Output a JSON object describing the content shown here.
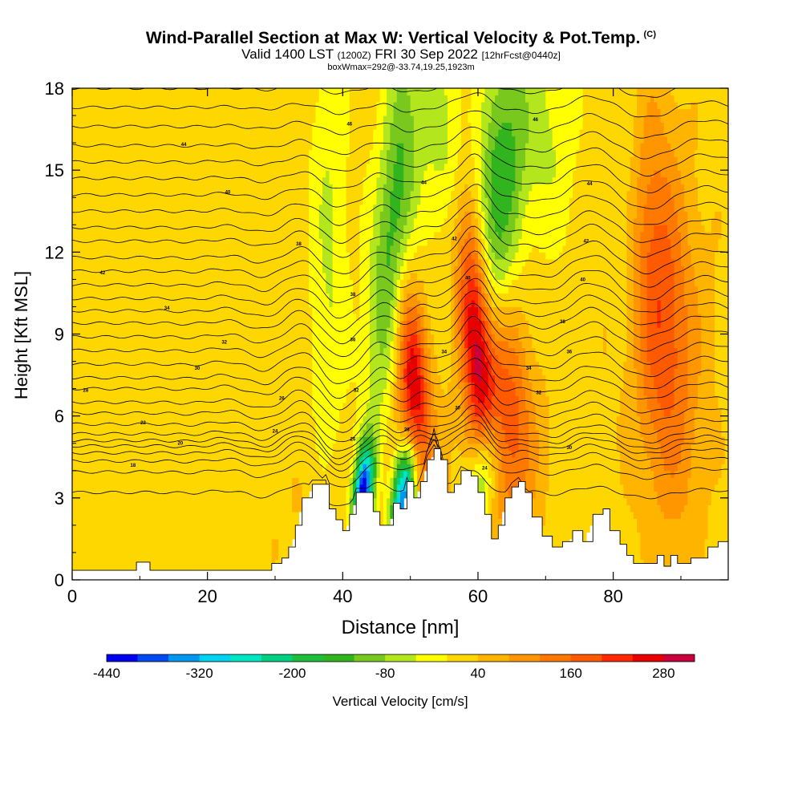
{
  "title": {
    "main": "Wind-Parallel Section at Max W: Vertical Velocity & Pot.Temp.",
    "copyright": "(C)",
    "valid_prefix": "Valid 1400 LST",
    "valid_utc": "(1200Z)",
    "valid_date": "FRI 30 Sep 2022",
    "forecast": "[12hrFcst@0440z]",
    "box_info": "boxWmax=292@-33.74,19.25,1923m"
  },
  "chart_data": {
    "type": "heatmap",
    "xlabel": "Distance [nm]",
    "ylabel": "Height [Kft MSL]",
    "xlim": [
      0,
      97
    ],
    "ylim": [
      0,
      18
    ],
    "x_ticks": [
      0,
      20,
      40,
      60,
      80
    ],
    "x_tick_labels": [
      "0",
      "20",
      "40",
      "60",
      "80"
    ],
    "y_ticks": [
      0,
      3,
      6,
      9,
      12,
      15,
      18
    ],
    "y_tick_labels": [
      "0",
      "3",
      "6",
      "9",
      "12",
      "15",
      "18"
    ],
    "colorbar": {
      "label": "Vertical Velocity [cm/s]",
      "levels": [
        -440,
        -400,
        -360,
        -320,
        -280,
        -240,
        -200,
        -160,
        -120,
        -80,
        -40,
        0,
        40,
        80,
        120,
        160,
        200,
        240,
        280,
        320
      ],
      "colors": [
        "#0000f0",
        "#0048f0",
        "#0096f0",
        "#00d2f0",
        "#00e6c3",
        "#00d080",
        "#1ebe3c",
        "#32b41e",
        "#78c81e",
        "#b4e61e",
        "#ffff00",
        "#ffd700",
        "#ffb400",
        "#ff9600",
        "#ff7800",
        "#ff5a00",
        "#ff2800",
        "#e60000",
        "#c8003c"
      ],
      "tick_values": [
        -440,
        -320,
        -200,
        -80,
        40,
        160,
        280
      ],
      "tick_labels": [
        "-440",
        "-320",
        "-200",
        "-80",
        "40",
        "160",
        "280"
      ]
    },
    "terrain_kft": [
      [
        0,
        0.35
      ],
      [
        9.5,
        0.35
      ],
      [
        9.5,
        0.65
      ],
      [
        11.5,
        0.65
      ],
      [
        11.5,
        0.35
      ],
      [
        29.5,
        0.35
      ],
      [
        29.5,
        0.6
      ],
      [
        31,
        0.8
      ],
      [
        32,
        1.2
      ],
      [
        33,
        2.0
      ],
      [
        34,
        3.0
      ],
      [
        35.5,
        3.5
      ],
      [
        37.5,
        3.5
      ],
      [
        38,
        2.6
      ],
      [
        39,
        2.2
      ],
      [
        40,
        1.8
      ],
      [
        41,
        2.4
      ],
      [
        42,
        3.2
      ],
      [
        43.5,
        3.2
      ],
      [
        44.5,
        2.5
      ],
      [
        45.5,
        2.0
      ],
      [
        46.5,
        2.0
      ],
      [
        47.5,
        2.8
      ],
      [
        48.5,
        2.6
      ],
      [
        49.5,
        3.6
      ],
      [
        50.5,
        3.0
      ],
      [
        51.5,
        3.6
      ],
      [
        52.5,
        4.4
      ],
      [
        53.5,
        4.8
      ],
      [
        54.5,
        4.4
      ],
      [
        55.5,
        3.2
      ],
      [
        56.5,
        3.5
      ],
      [
        57.5,
        4.0
      ],
      [
        59,
        3.8
      ],
      [
        60,
        3.2
      ],
      [
        61,
        2.4
      ],
      [
        62,
        1.5
      ],
      [
        63,
        2.0
      ],
      [
        64,
        3.0
      ],
      [
        65,
        3.4
      ],
      [
        66,
        3.6
      ],
      [
        67,
        3.2
      ],
      [
        68,
        2.3
      ],
      [
        69.5,
        1.6
      ],
      [
        71,
        1.2
      ],
      [
        72.5,
        1.4
      ],
      [
        74,
        1.8
      ],
      [
        75.5,
        1.4
      ],
      [
        77,
        2.4
      ],
      [
        78.5,
        2.6
      ],
      [
        79.5,
        1.8
      ],
      [
        81,
        1.3
      ],
      [
        82,
        0.9
      ],
      [
        83,
        0.6
      ],
      [
        85,
        0.6
      ],
      [
        86.5,
        0.9
      ],
      [
        87.5,
        0.5
      ],
      [
        88.5,
        0.9
      ],
      [
        89.5,
        0.6
      ],
      [
        91.5,
        0.8
      ],
      [
        93,
        0.8
      ],
      [
        94,
        1.2
      ],
      [
        95.5,
        1.4
      ],
      [
        97,
        1.4
      ]
    ],
    "updraft_cores": [
      {
        "x": 50.5,
        "y": 7.0,
        "w_max": 250,
        "half_width_nm": 1.6,
        "half_height_kft": 2.6
      },
      {
        "x": 59.7,
        "y": 9.0,
        "w_max": 292,
        "half_width_nm": 1.7,
        "half_height_kft": 3.4
      },
      {
        "x": 64.5,
        "y": 6.2,
        "w_max": 150,
        "half_width_nm": 2.5,
        "half_height_kft": 3.0
      },
      {
        "x": 87.0,
        "y": 10.0,
        "w_max": 140,
        "half_width_nm": 3.0,
        "half_height_kft": 5.0
      }
    ],
    "downdraft_cores": [
      {
        "x": 43.0,
        "y": 3.2,
        "w_min": -440,
        "half_width_nm": 1.0,
        "half_height_kft": 1.2
      },
      {
        "x": 49.0,
        "y": 3.0,
        "w_min": -400,
        "half_width_nm": 1.2,
        "half_height_kft": 1.4
      },
      {
        "x": 61.0,
        "y": 4.0,
        "w_min": -200,
        "half_width_nm": 1.5,
        "half_height_kft": 1.5
      },
      {
        "x": 47.5,
        "y": 13.0,
        "w_min": -160,
        "half_width_nm": 2.0,
        "half_height_kft": 5.0
      },
      {
        "x": 63.0,
        "y": 14.0,
        "w_min": -170,
        "half_width_nm": 2.5,
        "half_height_kft": 4.0
      }
    ],
    "theta_contour_kft": [
      3.2,
      3.95,
      4.35,
      4.65,
      4.9,
      5.1,
      5.35,
      5.7,
      6.1,
      6.5,
      7.0,
      7.4,
      7.9,
      8.4,
      8.9,
      9.4,
      9.85,
      10.3,
      10.8,
      11.3,
      11.8,
      12.4,
      12.9,
      13.5,
      14.1,
      14.7,
      15.3,
      15.9,
      16.6,
      17.3,
      18.0
    ],
    "theta_labels": [
      {
        "text": "42",
        "x": 4.5,
        "kft": 11.25
      },
      {
        "text": "44",
        "x": 16.5,
        "kft": 15.95
      },
      {
        "text": "40",
        "x": 23,
        "kft": 14.2
      },
      {
        "text": "38",
        "x": 33.5,
        "kft": 12.3
      },
      {
        "text": "34",
        "x": 14,
        "kft": 9.95
      },
      {
        "text": "32",
        "x": 22.5,
        "kft": 8.7
      },
      {
        "text": "30",
        "x": 18.5,
        "kft": 7.75
      },
      {
        "text": "28",
        "x": 2,
        "kft": 6.95
      },
      {
        "text": "26",
        "x": 31,
        "kft": 6.65
      },
      {
        "text": "24",
        "x": 30,
        "kft": 5.45
      },
      {
        "text": "22",
        "x": 10.5,
        "kft": 5.75
      },
      {
        "text": "20",
        "x": 16,
        "kft": 5.0
      },
      {
        "text": "18",
        "x": 9,
        "kft": 4.2
      },
      {
        "text": "46",
        "x": 41,
        "kft": 16.7
      },
      {
        "text": "44",
        "x": 52,
        "kft": 14.55
      },
      {
        "text": "42",
        "x": 56.5,
        "kft": 12.5
      },
      {
        "text": "40",
        "x": 58.5,
        "kft": 11.05
      },
      {
        "text": "38",
        "x": 41.5,
        "kft": 10.45
      },
      {
        "text": "36",
        "x": 41.5,
        "kft": 8.8
      },
      {
        "text": "34",
        "x": 55,
        "kft": 8.35
      },
      {
        "text": "32",
        "x": 42,
        "kft": 6.95
      },
      {
        "text": "30",
        "x": 57,
        "kft": 6.3
      },
      {
        "text": "28",
        "x": 49.5,
        "kft": 5.5
      },
      {
        "text": "26",
        "x": 41.5,
        "kft": 5.15
      },
      {
        "text": "24",
        "x": 61,
        "kft": 4.1
      },
      {
        "text": "46",
        "x": 68.5,
        "kft": 16.85
      },
      {
        "text": "44",
        "x": 76.5,
        "kft": 14.5
      },
      {
        "text": "42",
        "x": 76,
        "kft": 12.4
      },
      {
        "text": "40",
        "x": 75.5,
        "kft": 11.0
      },
      {
        "text": "38",
        "x": 72.5,
        "kft": 9.45
      },
      {
        "text": "36",
        "x": 73.5,
        "kft": 8.35
      },
      {
        "text": "34",
        "x": 67.5,
        "kft": 7.75
      },
      {
        "text": "32",
        "x": 69,
        "kft": 6.85
      },
      {
        "text": "30",
        "x": 73.5,
        "kft": 4.85
      }
    ]
  }
}
